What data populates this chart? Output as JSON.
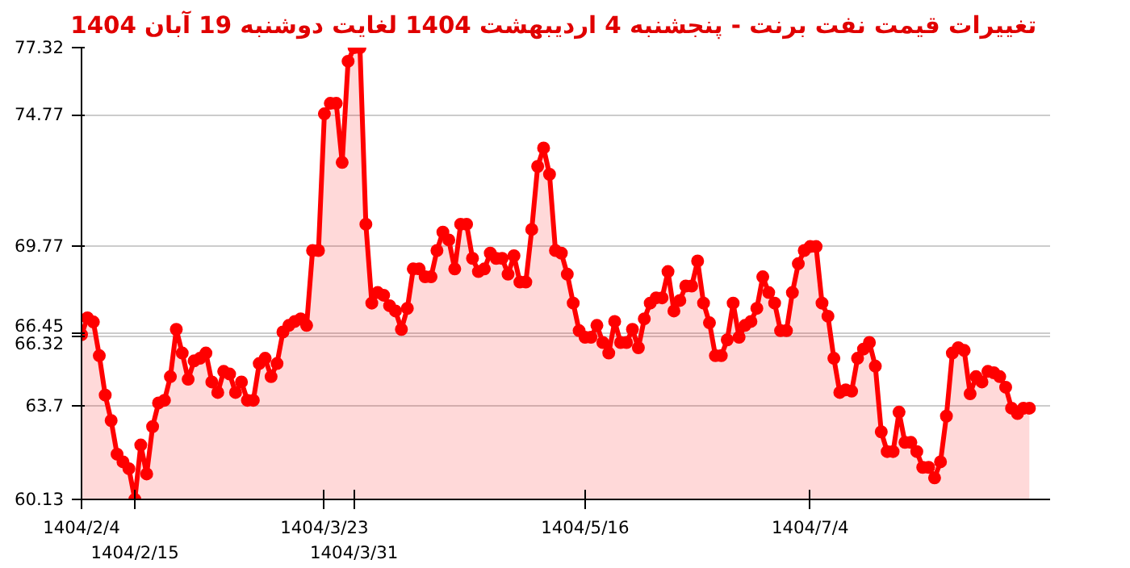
{
  "chart_data": {
    "type": "area",
    "title": "تغییرات قیمت نفت برنت - پنجشنبه  4 اردیبهشت 1404 لغایت  دوشنبه  19 آبان 1404",
    "ylim": [
      60.13,
      77.32
    ],
    "categories": [
      "1404/2/4",
      null,
      null,
      null,
      null,
      null,
      null,
      null,
      null,
      "1404/2/15",
      null,
      null,
      null,
      null,
      null,
      null,
      null,
      null,
      null,
      null,
      null,
      null,
      null,
      null,
      null,
      null,
      null,
      null,
      null,
      null,
      null,
      null,
      null,
      null,
      null,
      null,
      null,
      null,
      null,
      null,
      null,
      "1404/3/23",
      null,
      null,
      null,
      null,
      "1404/3/31",
      null,
      null,
      null,
      null,
      null,
      null,
      null,
      null,
      null,
      null,
      null,
      null,
      null,
      null,
      null,
      null,
      null,
      null,
      null,
      null,
      null,
      null,
      null,
      null,
      null,
      null,
      null,
      null,
      null,
      null,
      null,
      null,
      null,
      null,
      null,
      null,
      null,
      null,
      "1404/5/16",
      null,
      null,
      null,
      null,
      null,
      null,
      null,
      null,
      null,
      null,
      null,
      null,
      null,
      null,
      null,
      null,
      null,
      null,
      null,
      null,
      null,
      null,
      null,
      null,
      null,
      null,
      null,
      null,
      null,
      null,
      null,
      null,
      null,
      null,
      null,
      null,
      null,
      "1404/7/4",
      null,
      null,
      null,
      null,
      null,
      null,
      null,
      null,
      null,
      null,
      null,
      null,
      null,
      null,
      null,
      null,
      null,
      null,
      null,
      null,
      null,
      null,
      null,
      null,
      null,
      null,
      null,
      null,
      null,
      null,
      null,
      null,
      null,
      null,
      null,
      null,
      null
    ],
    "yticks": [
      60.13,
      63.7,
      66.32,
      66.45,
      69.77,
      74.77,
      77.32
    ],
    "grid": "y",
    "marker": "circle",
    "series": [
      {
        "color": "#ff0000",
        "values": [
          66.4,
          67.04,
          66.88,
          65.6,
          64.1,
          63.13,
          61.85,
          61.56,
          61.3,
          60.13,
          62.2,
          61.1,
          62.9,
          63.8,
          63.9,
          64.8,
          66.6,
          65.7,
          64.7,
          65.4,
          65.5,
          65.7,
          64.6,
          64.2,
          65.0,
          64.9,
          64.2,
          64.6,
          63.9,
          63.9,
          65.3,
          65.5,
          64.8,
          65.3,
          66.5,
          66.75,
          66.9,
          67.0,
          66.75,
          69.6,
          69.6,
          74.8,
          75.2,
          75.2,
          72.95,
          76.8,
          77.32,
          77.32,
          70.6,
          67.6,
          68.0,
          67.9,
          67.5,
          67.3,
          66.6,
          67.4,
          68.9,
          68.9,
          68.6,
          68.6,
          69.6,
          70.3,
          70.0,
          68.9,
          70.6,
          70.6,
          69.3,
          68.8,
          68.9,
          69.5,
          69.3,
          69.3,
          68.7,
          69.4,
          68.4,
          68.4,
          70.4,
          72.8,
          73.5,
          72.5,
          69.6,
          69.5,
          68.7,
          67.6,
          66.55,
          66.3,
          66.3,
          66.75,
          66.1,
          65.7,
          66.9,
          66.1,
          66.1,
          66.6,
          65.9,
          67.0,
          67.6,
          67.8,
          67.8,
          68.8,
          67.3,
          67.7,
          68.25,
          68.25,
          69.2,
          67.6,
          66.85,
          65.6,
          65.6,
          66.2,
          67.6,
          66.3,
          66.75,
          66.9,
          67.4,
          68.6,
          68.0,
          67.6,
          66.55,
          66.55,
          68.0,
          69.1,
          69.6,
          69.75,
          69.75,
          67.6,
          67.1,
          65.5,
          64.2,
          64.3,
          64.25,
          65.5,
          65.85,
          66.1,
          65.2,
          62.7,
          61.95,
          61.95,
          63.45,
          62.3,
          62.3,
          61.95,
          61.35,
          61.35,
          60.95,
          61.56,
          63.3,
          65.7,
          65.9,
          65.8,
          64.15,
          64.8,
          64.6,
          65.0,
          64.95,
          64.8,
          64.4,
          63.6,
          63.4,
          63.6,
          63.6
        ]
      }
    ]
  }
}
